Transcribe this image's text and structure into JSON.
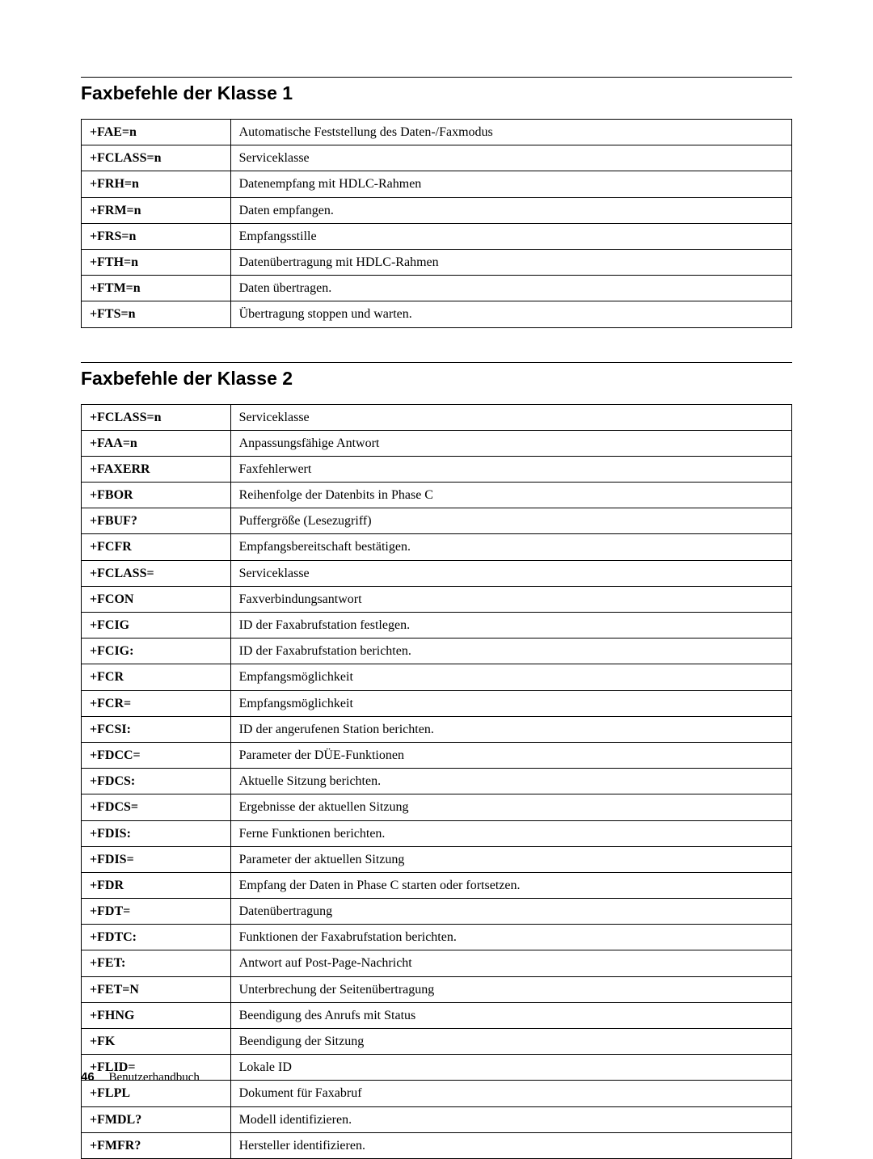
{
  "section1": {
    "title": "Faxbefehle der Klasse 1",
    "rows": [
      {
        "cmd": "+FAE=n",
        "desc": "Automatische Feststellung des Daten-/Faxmodus"
      },
      {
        "cmd": "+FCLASS=n",
        "desc": "Serviceklasse"
      },
      {
        "cmd": "+FRH=n",
        "desc": "Datenempfang mit HDLC-Rahmen"
      },
      {
        "cmd": "+FRM=n",
        "desc": "Daten empfangen."
      },
      {
        "cmd": "+FRS=n",
        "desc": "Empfangsstille"
      },
      {
        "cmd": "+FTH=n",
        "desc": "Datenübertragung mit HDLC-Rahmen"
      },
      {
        "cmd": "+FTM=n",
        "desc": "Daten übertragen."
      },
      {
        "cmd": "+FTS=n",
        "desc": "Übertragung stoppen und warten."
      }
    ]
  },
  "section2": {
    "title": "Faxbefehle der Klasse 2",
    "rows": [
      {
        "cmd": "+FCLASS=n",
        "desc": "Serviceklasse"
      },
      {
        "cmd": "+FAA=n",
        "desc": "Anpassungsfähige Antwort"
      },
      {
        "cmd": "+FAXERR",
        "desc": "Faxfehlerwert"
      },
      {
        "cmd": "+FBOR",
        "desc": "Reihenfolge der Datenbits in Phase C"
      },
      {
        "cmd": "+FBUF?",
        "desc": "Puffergröße (Lesezugriff)"
      },
      {
        "cmd": "+FCFR",
        "desc": "Empfangsbereitschaft bestätigen."
      },
      {
        "cmd": "+FCLASS=",
        "desc": "Serviceklasse"
      },
      {
        "cmd": "+FCON",
        "desc": "Faxverbindungsantwort"
      },
      {
        "cmd": "+FCIG",
        "desc": "ID der Faxabrufstation festlegen."
      },
      {
        "cmd": "+FCIG:",
        "desc": "ID der Faxabrufstation berichten."
      },
      {
        "cmd": "+FCR",
        "desc": "Empfangsmöglichkeit"
      },
      {
        "cmd": "+FCR=",
        "desc": "Empfangsmöglichkeit"
      },
      {
        "cmd": "+FCSI:",
        "desc": "ID der angerufenen Station berichten."
      },
      {
        "cmd": "+FDCC=",
        "desc": "Parameter der DÜE-Funktionen"
      },
      {
        "cmd": "+FDCS:",
        "desc": "Aktuelle Sitzung berichten."
      },
      {
        "cmd": "+FDCS=",
        "desc": "Ergebnisse der aktuellen Sitzung"
      },
      {
        "cmd": "+FDIS:",
        "desc": "Ferne Funktionen berichten."
      },
      {
        "cmd": "+FDIS=",
        "desc": "Parameter der aktuellen Sitzung"
      },
      {
        "cmd": "+FDR",
        "desc": "Empfang der Daten in Phase C starten oder fortsetzen."
      },
      {
        "cmd": "+FDT=",
        "desc": "Datenübertragung"
      },
      {
        "cmd": "+FDTC:",
        "desc": "Funktionen der Faxabrufstation berichten."
      },
      {
        "cmd": "+FET:",
        "desc": "Antwort auf Post-Page-Nachricht"
      },
      {
        "cmd": "+FET=N",
        "desc": "Unterbrechung der Seitenübertragung"
      },
      {
        "cmd": "+FHNG",
        "desc": "Beendigung des Anrufs mit Status"
      },
      {
        "cmd": "+FK",
        "desc": "Beendigung der Sitzung"
      },
      {
        "cmd": "+FLID=",
        "desc": "Lokale ID"
      },
      {
        "cmd": "+FLPL",
        "desc": "Dokument für Faxabruf"
      },
      {
        "cmd": "+FMDL?",
        "desc": "Modell identifizieren."
      },
      {
        "cmd": "+FMFR?",
        "desc": "Hersteller identifizieren."
      }
    ]
  },
  "footer": {
    "page": "46",
    "text": "Benutzerhandbuch"
  }
}
